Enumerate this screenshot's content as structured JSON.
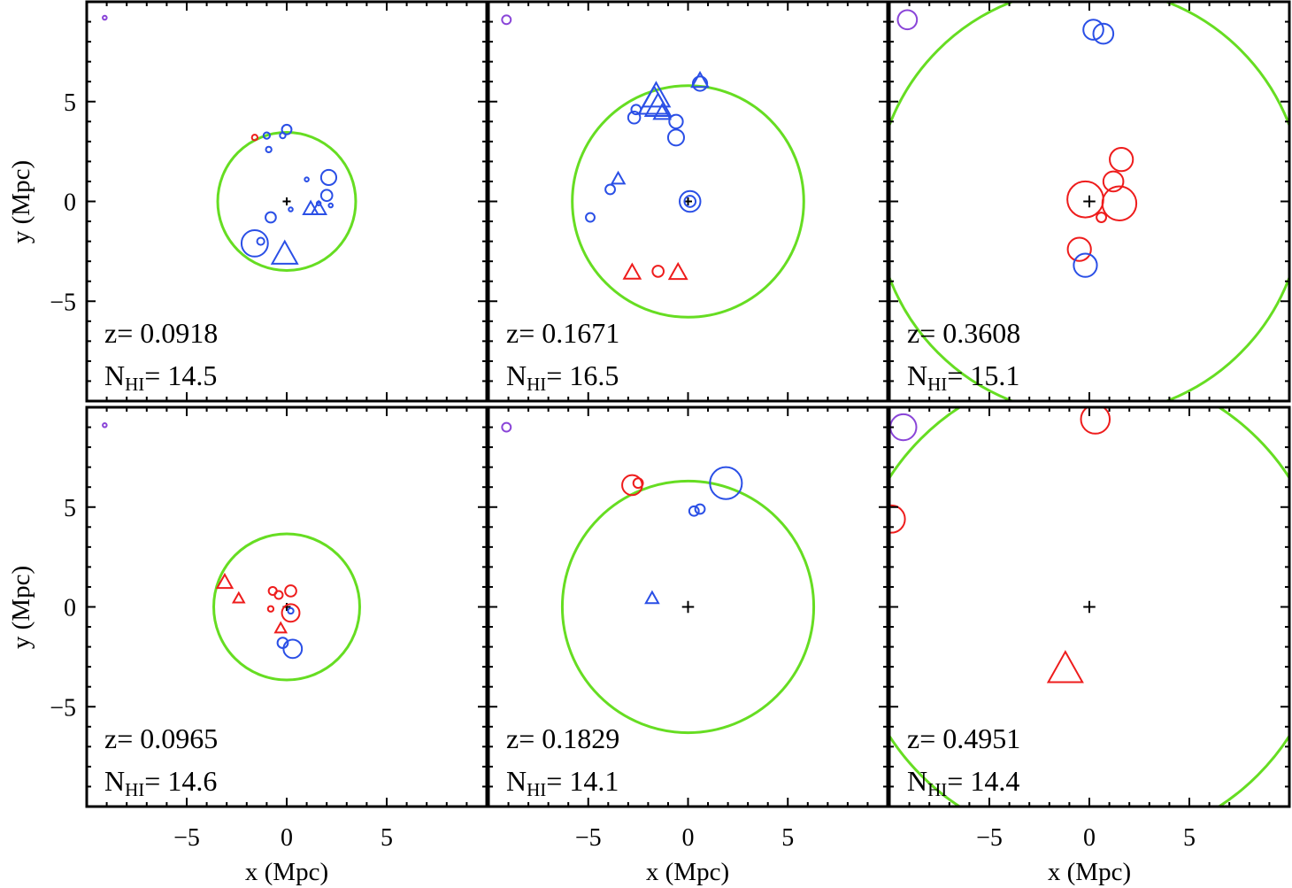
{
  "figure": {
    "xlabel": "x (Mpc)",
    "ylabel": "y (Mpc)",
    "colors": {
      "red": "#ee1c1c",
      "blue": "#2a4fe6",
      "purple": "#8a45d8",
      "green": "#66dd22",
      "axis": "#000000"
    }
  },
  "chart_data": [
    {
      "type": "scatter",
      "panel": "top-left",
      "title": "",
      "xlabel": "",
      "ylabel": "y (Mpc)",
      "xlim": [
        -10,
        10
      ],
      "ylim": [
        -10,
        10
      ],
      "x_ticks": [
        -5,
        0,
        5
      ],
      "y_ticks": [
        -5,
        0,
        5
      ],
      "x_tick_labels": [
        "",
        "",
        ""
      ],
      "y_tick_labels": [
        "−5",
        "0",
        "5"
      ],
      "z_label": "z= 0.0918",
      "nhi_prefix": "N",
      "nhi_sub": "HI",
      "nhi_value": "= 14.5",
      "green_circle_radius": 3.45,
      "points": [
        {
          "x": -9.1,
          "y": 9.2,
          "shape": "circle",
          "color": "purple",
          "size": 0.1
        },
        {
          "x": 0,
          "y": 0,
          "shape": "plus",
          "color": "black",
          "size": 0.2
        },
        {
          "x": -1.6,
          "y": 3.2,
          "shape": "circle",
          "color": "red",
          "size": 0.14
        },
        {
          "x": -1.0,
          "y": 3.3,
          "shape": "circle",
          "color": "blue",
          "size": 0.16
        },
        {
          "x": -0.2,
          "y": 3.3,
          "shape": "circle",
          "color": "blue",
          "size": 0.14
        },
        {
          "x": 0.0,
          "y": 3.6,
          "shape": "circle",
          "color": "blue",
          "size": 0.24
        },
        {
          "x": -0.9,
          "y": 2.6,
          "shape": "circle",
          "color": "blue",
          "size": 0.14
        },
        {
          "x": 2.1,
          "y": 1.2,
          "shape": "circle",
          "color": "blue",
          "size": 0.38
        },
        {
          "x": 1.0,
          "y": 1.1,
          "shape": "circle",
          "color": "blue",
          "size": 0.1
        },
        {
          "x": 2.0,
          "y": 0.3,
          "shape": "circle",
          "color": "blue",
          "size": 0.28
        },
        {
          "x": 1.6,
          "y": -0.1,
          "shape": "circle",
          "color": "blue",
          "size": 0.1
        },
        {
          "x": 2.2,
          "y": -0.2,
          "shape": "circle",
          "color": "blue",
          "size": 0.1
        },
        {
          "x": 1.2,
          "y": -0.4,
          "shape": "triangle",
          "color": "blue",
          "size": 0.4
        },
        {
          "x": 1.6,
          "y": -0.4,
          "shape": "triangle",
          "color": "blue",
          "size": 0.4
        },
        {
          "x": 0.2,
          "y": -0.4,
          "shape": "circle",
          "color": "blue",
          "size": 0.1
        },
        {
          "x": -0.8,
          "y": -0.8,
          "shape": "circle",
          "color": "blue",
          "size": 0.26
        },
        {
          "x": -1.6,
          "y": -2.1,
          "shape": "circle",
          "color": "blue",
          "size": 0.66
        },
        {
          "x": -1.3,
          "y": -2.0,
          "shape": "circle",
          "color": "blue",
          "size": 0.18
        },
        {
          "x": -0.1,
          "y": -2.7,
          "shape": "triangle",
          "color": "blue",
          "size": 0.7
        }
      ]
    },
    {
      "type": "scatter",
      "panel": "top-center",
      "title": "",
      "xlabel": "",
      "ylabel": "",
      "xlim": [
        -10,
        10
      ],
      "ylim": [
        -10,
        10
      ],
      "x_ticks": [
        -5,
        0,
        5
      ],
      "y_ticks": [
        -5,
        0,
        5
      ],
      "x_tick_labels": [
        "",
        "",
        ""
      ],
      "y_tick_labels": [
        "",
        "",
        ""
      ],
      "z_label": "z= 0.1671",
      "nhi_prefix": "N",
      "nhi_sub": "HI",
      "nhi_value": "= 16.5",
      "green_circle_radius": 5.8,
      "points": [
        {
          "x": -9.1,
          "y": 9.1,
          "shape": "circle",
          "color": "purple",
          "size": 0.22
        },
        {
          "x": 0.0,
          "y": 0.0,
          "shape": "plus",
          "color": "black",
          "size": 0.2
        },
        {
          "x": 0.1,
          "y": 0.0,
          "shape": "circle",
          "color": "blue",
          "size": 0.52
        },
        {
          "x": 0.1,
          "y": 0.0,
          "shape": "circle",
          "color": "blue",
          "size": 0.28
        },
        {
          "x": 0.6,
          "y": 5.9,
          "shape": "circle",
          "color": "blue",
          "size": 0.36
        },
        {
          "x": 0.6,
          "y": 6.0,
          "shape": "triangle",
          "color": "blue",
          "size": 0.45
        },
        {
          "x": -1.6,
          "y": 5.2,
          "shape": "triangle",
          "color": "blue",
          "size": 0.75
        },
        {
          "x": -1.7,
          "y": 4.9,
          "shape": "triangle",
          "color": "blue",
          "size": 0.85
        },
        {
          "x": -1.5,
          "y": 4.7,
          "shape": "triangle",
          "color": "blue",
          "size": 0.7
        },
        {
          "x": -1.3,
          "y": 4.4,
          "shape": "triangle",
          "color": "blue",
          "size": 0.45
        },
        {
          "x": -2.6,
          "y": 4.6,
          "shape": "circle",
          "color": "blue",
          "size": 0.24
        },
        {
          "x": -2.7,
          "y": 4.2,
          "shape": "circle",
          "color": "blue",
          "size": 0.3
        },
        {
          "x": -0.6,
          "y": 4.0,
          "shape": "circle",
          "color": "blue",
          "size": 0.34
        },
        {
          "x": -0.6,
          "y": 3.2,
          "shape": "circle",
          "color": "blue",
          "size": 0.4
        },
        {
          "x": -3.5,
          "y": 1.1,
          "shape": "triangle",
          "color": "blue",
          "size": 0.35
        },
        {
          "x": -3.9,
          "y": 0.6,
          "shape": "circle",
          "color": "blue",
          "size": 0.24
        },
        {
          "x": -4.9,
          "y": -0.8,
          "shape": "circle",
          "color": "blue",
          "size": 0.22
        },
        {
          "x": -2.8,
          "y": -3.6,
          "shape": "triangle",
          "color": "red",
          "size": 0.45
        },
        {
          "x": -1.5,
          "y": -3.5,
          "shape": "circle",
          "color": "red",
          "size": 0.28
        },
        {
          "x": -0.5,
          "y": -3.6,
          "shape": "triangle",
          "color": "red",
          "size": 0.48
        }
      ]
    },
    {
      "type": "scatter",
      "panel": "top-right",
      "title": "",
      "xlabel": "",
      "ylabel": "",
      "xlim": [
        -10,
        10
      ],
      "ylim": [
        -10,
        10
      ],
      "x_ticks": [
        -5,
        0,
        5
      ],
      "y_ticks": [
        -5,
        0,
        5
      ],
      "x_tick_labels": [
        "",
        "",
        ""
      ],
      "y_tick_labels": [
        "",
        "",
        ""
      ],
      "z_label": "z= 0.3608",
      "nhi_prefix": "N",
      "nhi_sub": "HI",
      "nhi_value": "= 15.1",
      "green_circle_radius": 10.7,
      "points": [
        {
          "x": -9.1,
          "y": 9.1,
          "shape": "circle",
          "color": "purple",
          "size": 0.48
        },
        {
          "x": 0.2,
          "y": 8.6,
          "shape": "circle",
          "color": "blue",
          "size": 0.5
        },
        {
          "x": 0.7,
          "y": 8.4,
          "shape": "circle",
          "color": "blue",
          "size": 0.5
        },
        {
          "x": 0.0,
          "y": 0.0,
          "shape": "plus",
          "color": "black",
          "size": 0.3
        },
        {
          "x": -0.2,
          "y": 0.1,
          "shape": "circle",
          "color": "red",
          "size": 0.9
        },
        {
          "x": 1.6,
          "y": 2.1,
          "shape": "circle",
          "color": "red",
          "size": 0.58
        },
        {
          "x": 1.2,
          "y": 1.0,
          "shape": "circle",
          "color": "red",
          "size": 0.5
        },
        {
          "x": 1.5,
          "y": -0.1,
          "shape": "circle",
          "color": "red",
          "size": 0.85
        },
        {
          "x": 0.6,
          "y": -0.8,
          "shape": "circle",
          "color": "red",
          "size": 0.24
        },
        {
          "x": -0.5,
          "y": -2.4,
          "shape": "circle",
          "color": "red",
          "size": 0.58
        },
        {
          "x": -0.2,
          "y": -3.2,
          "shape": "circle",
          "color": "blue",
          "size": 0.58
        }
      ]
    },
    {
      "type": "scatter",
      "panel": "bottom-left",
      "title": "",
      "xlabel": "x (Mpc)",
      "ylabel": "y (Mpc)",
      "xlim": [
        -10,
        10
      ],
      "ylim": [
        -10,
        10
      ],
      "x_ticks": [
        -5,
        0,
        5
      ],
      "y_ticks": [
        -5,
        0,
        5
      ],
      "x_tick_labels": [
        "−5",
        "0",
        "5"
      ],
      "y_tick_labels": [
        "−5",
        "0",
        "5"
      ],
      "z_label": "z= 0.0965",
      "nhi_prefix": "N",
      "nhi_sub": "HI",
      "nhi_value": "= 14.6",
      "green_circle_radius": 3.65,
      "points": [
        {
          "x": -9.1,
          "y": 9.1,
          "shape": "circle",
          "color": "purple",
          "size": 0.1
        },
        {
          "x": 0.0,
          "y": 0.0,
          "shape": "plus",
          "color": "black",
          "size": 0.2
        },
        {
          "x": -3.1,
          "y": 1.2,
          "shape": "triangle",
          "color": "red",
          "size": 0.42
        },
        {
          "x": -2.4,
          "y": 0.4,
          "shape": "triangle",
          "color": "red",
          "size": 0.3
        },
        {
          "x": -0.7,
          "y": 0.8,
          "shape": "circle",
          "color": "red",
          "size": 0.2
        },
        {
          "x": -0.4,
          "y": 0.6,
          "shape": "circle",
          "color": "red",
          "size": 0.2
        },
        {
          "x": 0.2,
          "y": 0.8,
          "shape": "circle",
          "color": "red",
          "size": 0.28
        },
        {
          "x": -0.8,
          "y": -0.1,
          "shape": "circle",
          "color": "red",
          "size": 0.14
        },
        {
          "x": 0.2,
          "y": -0.3,
          "shape": "circle",
          "color": "red",
          "size": 0.44
        },
        {
          "x": -0.3,
          "y": -1.1,
          "shape": "triangle",
          "color": "red",
          "size": 0.3
        },
        {
          "x": 0.2,
          "y": -0.2,
          "shape": "circle",
          "color": "blue",
          "size": 0.14
        },
        {
          "x": -0.2,
          "y": -1.8,
          "shape": "circle",
          "color": "blue",
          "size": 0.26
        },
        {
          "x": 0.3,
          "y": -2.1,
          "shape": "circle",
          "color": "blue",
          "size": 0.46
        }
      ]
    },
    {
      "type": "scatter",
      "panel": "bottom-center",
      "title": "",
      "xlabel": "x (Mpc)",
      "ylabel": "",
      "xlim": [
        -10,
        10
      ],
      "ylim": [
        -10,
        10
      ],
      "x_ticks": [
        -5,
        0,
        5
      ],
      "y_ticks": [
        -5,
        0,
        5
      ],
      "x_tick_labels": [
        "−5",
        "0",
        "5"
      ],
      "y_tick_labels": [
        "",
        "",
        ""
      ],
      "z_label": "z= 0.1829",
      "nhi_prefix": "N",
      "nhi_sub": "HI",
      "nhi_value": "= 14.1",
      "green_circle_radius": 6.3,
      "points": [
        {
          "x": -9.1,
          "y": 9.0,
          "shape": "circle",
          "color": "purple",
          "size": 0.22
        },
        {
          "x": 0.0,
          "y": 0.0,
          "shape": "plus",
          "color": "black",
          "size": 0.3
        },
        {
          "x": -2.8,
          "y": 6.1,
          "shape": "circle",
          "color": "red",
          "size": 0.5
        },
        {
          "x": -2.5,
          "y": 6.2,
          "shape": "circle",
          "color": "red",
          "size": 0.24
        },
        {
          "x": 1.9,
          "y": 6.2,
          "shape": "circle",
          "color": "blue",
          "size": 0.8
        },
        {
          "x": 0.3,
          "y": 4.8,
          "shape": "circle",
          "color": "blue",
          "size": 0.24
        },
        {
          "x": 0.6,
          "y": 4.9,
          "shape": "circle",
          "color": "blue",
          "size": 0.24
        },
        {
          "x": -1.8,
          "y": 0.4,
          "shape": "triangle",
          "color": "blue",
          "size": 0.35
        }
      ]
    },
    {
      "type": "scatter",
      "panel": "bottom-right",
      "title": "",
      "xlabel": "x (Mpc)",
      "ylabel": "",
      "xlim": [
        -10,
        10
      ],
      "ylim": [
        -10,
        10
      ],
      "x_ticks": [
        -5,
        0,
        5
      ],
      "y_ticks": [
        -5,
        0,
        5
      ],
      "x_tick_labels": [
        "−5",
        "0",
        "5"
      ],
      "y_tick_labels": [
        "",
        "",
        ""
      ],
      "z_label": "z= 0.4951",
      "nhi_prefix": "N",
      "nhi_sub": "HI",
      "nhi_value": "= 14.4",
      "green_circle_radius": 11.9,
      "points": [
        {
          "x": -9.3,
          "y": 9.0,
          "shape": "circle",
          "color": "purple",
          "size": 0.65
        },
        {
          "x": 0.3,
          "y": 9.4,
          "shape": "circle",
          "color": "red",
          "size": 0.72
        },
        {
          "x": -9.9,
          "y": 4.4,
          "shape": "circle",
          "color": "red",
          "size": 0.68
        },
        {
          "x": 0.0,
          "y": 0.0,
          "shape": "plus",
          "color": "black",
          "size": 0.3
        },
        {
          "x": -1.2,
          "y": -3.2,
          "shape": "triangle",
          "color": "red",
          "size": 0.95
        }
      ]
    }
  ]
}
